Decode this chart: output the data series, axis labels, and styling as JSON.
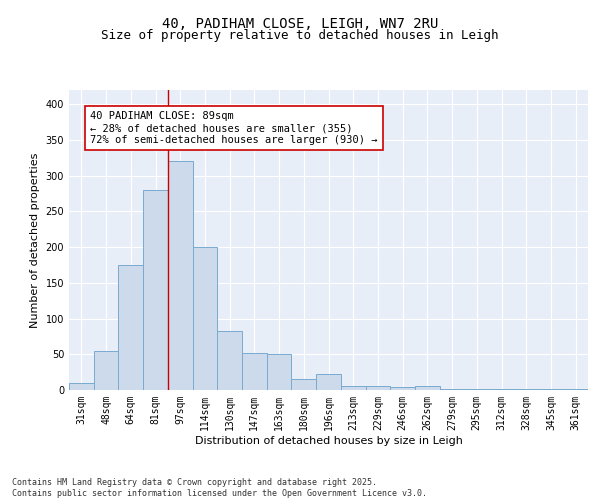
{
  "title": "40, PADIHAM CLOSE, LEIGH, WN7 2RU",
  "subtitle": "Size of property relative to detached houses in Leigh",
  "xlabel": "Distribution of detached houses by size in Leigh",
  "ylabel": "Number of detached properties",
  "categories": [
    "31sqm",
    "48sqm",
    "64sqm",
    "81sqm",
    "97sqm",
    "114sqm",
    "130sqm",
    "147sqm",
    "163sqm",
    "180sqm",
    "196sqm",
    "213sqm",
    "229sqm",
    "246sqm",
    "262sqm",
    "279sqm",
    "295sqm",
    "312sqm",
    "328sqm",
    "345sqm",
    "361sqm"
  ],
  "bar_heights": [
    10,
    55,
    175,
    280,
    320,
    200,
    82,
    52,
    50,
    15,
    22,
    6,
    6,
    4,
    6,
    2,
    2,
    2,
    2,
    2,
    1
  ],
  "bar_color": "#cddaec",
  "bar_edge_color": "#7aaad0",
  "background_color": "#e8eef8",
  "grid_color": "#ffffff",
  "annotation_text": "40 PADIHAM CLOSE: 89sqm\n← 28% of detached houses are smaller (355)\n72% of semi-detached houses are larger (930) →",
  "annotation_box_facecolor": "#ffffff",
  "annotation_box_edgecolor": "#cc0000",
  "vline_x_index": 3.5,
  "vline_color": "#cc0000",
  "ylim": [
    0,
    420
  ],
  "yticks": [
    0,
    50,
    100,
    150,
    200,
    250,
    300,
    350,
    400
  ],
  "footer_text": "Contains HM Land Registry data © Crown copyright and database right 2025.\nContains public sector information licensed under the Open Government Licence v3.0.",
  "title_fontsize": 10,
  "subtitle_fontsize": 9,
  "axis_label_fontsize": 8,
  "tick_fontsize": 7,
  "annotation_fontsize": 7.5,
  "footer_fontsize": 6
}
